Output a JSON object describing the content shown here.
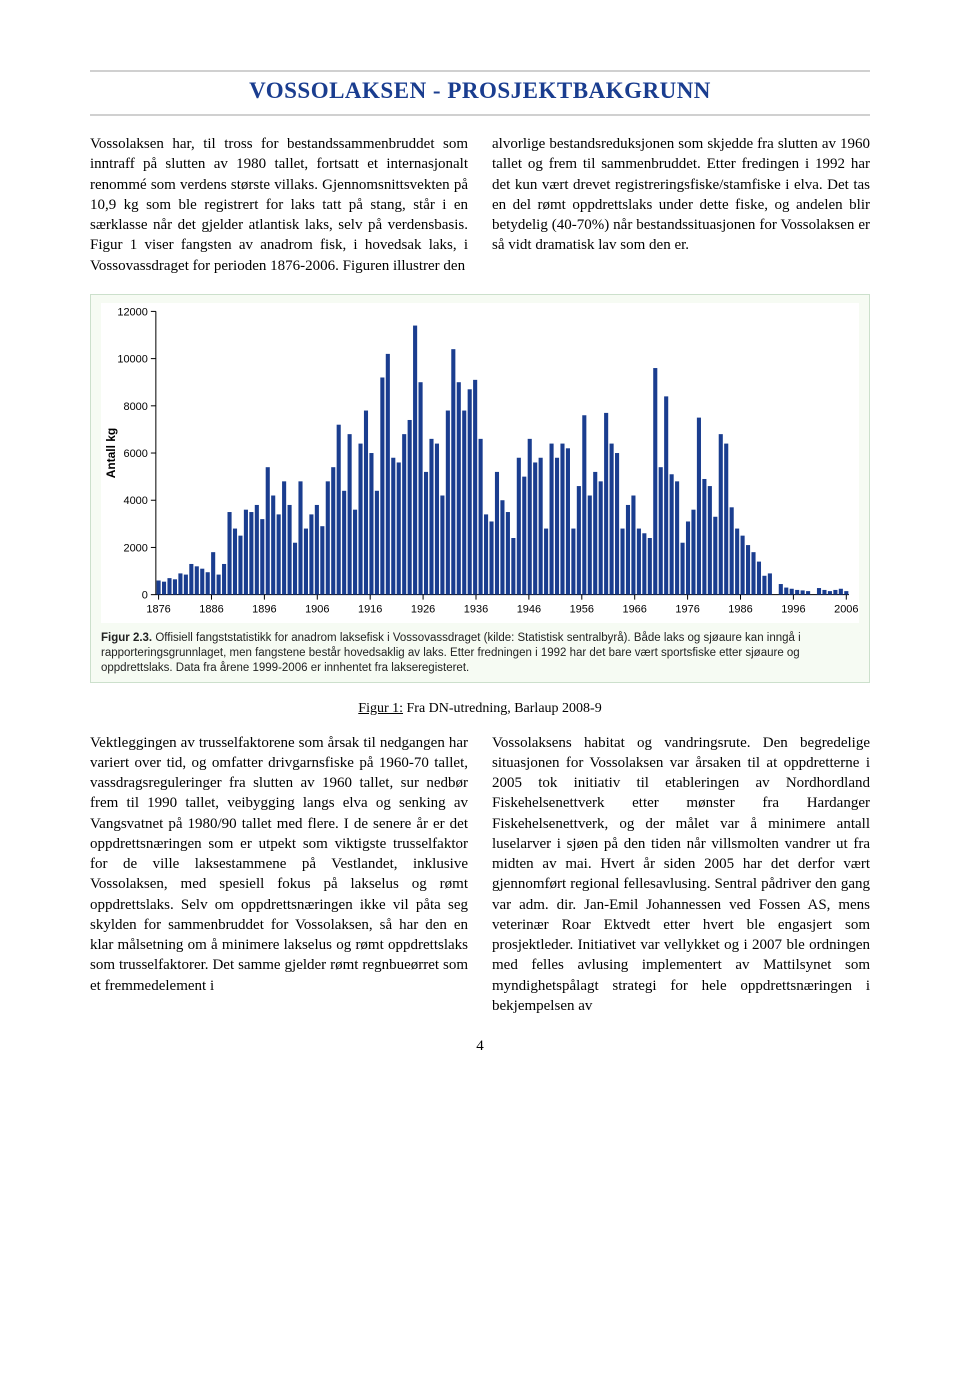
{
  "title": "VOSSOLAKSEN - PROSJEKTBAKGRUNN",
  "intro": {
    "left": "Vossolaksen har, til tross for bestandssammenbruddet som inntraff på slutten av 1980 tallet, fortsatt et internasjonalt renommé som verdens største villaks. Gjennomsnittsvekten på 10,9 kg som ble registrert for laks tatt på stang, står i en særklasse når det gjelder atlantisk laks, selv på verdensbasis. Figur 1 viser fangsten av anadrom fisk, i hovedsak laks, i Vossovassdraget for perioden 1876-2006. Figuren illustrer den",
    "right": "alvorlige bestandsreduksjonen som skjedde fra slutten av 1960 tallet og frem til sammenbruddet. Etter fredingen i 1992 har det kun vært drevet registreringsfiske/stamfiske i elva. Det tas en del rømt oppdrettslaks under dette fiske, og andelen blir betydelig (40-70%) når bestandssituasjonen for Vossolaksen er så vidt dramatisk lav som den er."
  },
  "chart": {
    "type": "bar",
    "ylabel": "Antall kg",
    "ylim": [
      0,
      12000
    ],
    "ytick_step": 2000,
    "yticks": [
      0,
      2000,
      4000,
      6000,
      8000,
      10000,
      12000
    ],
    "xlim": [
      1876,
      2006
    ],
    "xtick_start": 1876,
    "xtick_step": 10,
    "xticks": [
      1876,
      1886,
      1896,
      1906,
      1916,
      1926,
      1936,
      1946,
      1956,
      1966,
      1976,
      1986,
      1996,
      2006
    ],
    "bar_color": "#1a3d8f",
    "background_color": "#ffffff",
    "border_color": "#000000",
    "label_fontsize": 12,
    "tick_fontsize": 11,
    "values": [
      600,
      550,
      700,
      650,
      900,
      850,
      1300,
      1200,
      1100,
      950,
      1800,
      850,
      1300,
      3500,
      2800,
      2500,
      3600,
      3500,
      3800,
      3200,
      5400,
      4200,
      3400,
      4800,
      3800,
      2200,
      4800,
      2800,
      3400,
      3800,
      2900,
      4800,
      5400,
      7200,
      4400,
      6800,
      3600,
      6400,
      7800,
      6000,
      4400,
      9200,
      10200,
      5800,
      5600,
      6800,
      7400,
      11400,
      9000,
      5200,
      6600,
      6400,
      4200,
      7800,
      10400,
      9000,
      7800,
      8700,
      9100,
      6600,
      3400,
      3100,
      5200,
      4000,
      3500,
      2400,
      5800,
      5000,
      6600,
      5600,
      5800,
      2800,
      6400,
      5800,
      6400,
      6200,
      2800,
      4600,
      7600,
      4200,
      5200,
      4800,
      7700,
      6400,
      6000,
      2800,
      3800,
      4200,
      2800,
      2600,
      2400,
      9600,
      5400,
      8400,
      5100,
      4800,
      2200,
      3100,
      3600,
      7500,
      4900,
      4600,
      3300,
      6800,
      6400,
      3700,
      2800,
      2500,
      2100,
      1800,
      1400,
      800,
      900,
      0,
      450,
      300,
      250,
      200,
      180,
      150,
      0,
      280,
      200,
      150,
      200,
      250,
      150
    ]
  },
  "chart_caption_label": "Figur 2.3.",
  "chart_caption_text": " Offisiell fangststatistikk for anadrom laksefisk i Vossovassdraget (kilde: Statistisk sentralbyrå). Både laks og sjøaure kan inngå i rapporteringsgrunnlaget, men fangstene består hovedsaklig av laks. Etter fredningen i 1992 har det bare vært sportsfiske etter sjøaure og oppdrettslaks. Data fra årene 1999-2006 er innhentet fra lakseregisteret.",
  "figref_label": "Figur 1:",
  "figref_text": " Fra DN-utredning, Barlaup 2008-9",
  "body": {
    "left": "Vektleggingen av trusselfaktorene som årsak til nedgangen har variert over tid, og omfatter drivgarnsfiske på 1960-70 tallet, vassdragsreguleringer fra slutten av 1960 tallet, sur nedbør frem til 1990 tallet, veibygging langs elva og senking av Vangsvatnet på 1980/90 tallet med flere. I de senere år er det oppdrettsnæringen som er utpekt som viktigste trusselfaktor for de ville laksestammene på Vestlandet, inklusive Vossolaksen, med spesiell fokus på lakselus og rømt oppdrettslaks. Selv om oppdrettsnæringen ikke vil påta seg skylden for sammenbruddet for Vossolaksen, så har den en klar målsetning om å minimere lakselus og rømt oppdrettslaks som trusselfaktorer. Det samme gjelder rømt regnbueørret som et fremmedelement i",
    "right": "Vossolaksens habitat og vandringsrute. Den begredelige situasjonen for Vossolaksen var årsaken til at oppdretterne i 2005 tok initiativ til etableringen av Nordhordland Fiskehelsenettverk etter mønster fra Hardanger Fiskehelsenettverk, og der målet var å minimere antall luselarver i sjøen på den tiden når villsmolten vandrer ut fra midten av mai. Hvert år siden 2005 har det derfor vært gjennomført regional fellesavlusing. Sentral pådriver den gang var adm. dir. Jan-Emil Johannessen ved Fossen AS, mens veterinær Roar Ektvedt etter hvert ble engasjert som prosjektleder. Initiativet var vellykket og i 2007 ble ordningen med felles avlusing implementert av Mattilsynet som myndighetspålagt strategi for hele oppdrettsnæringen i bekjempelsen av"
  },
  "page_number": "4"
}
